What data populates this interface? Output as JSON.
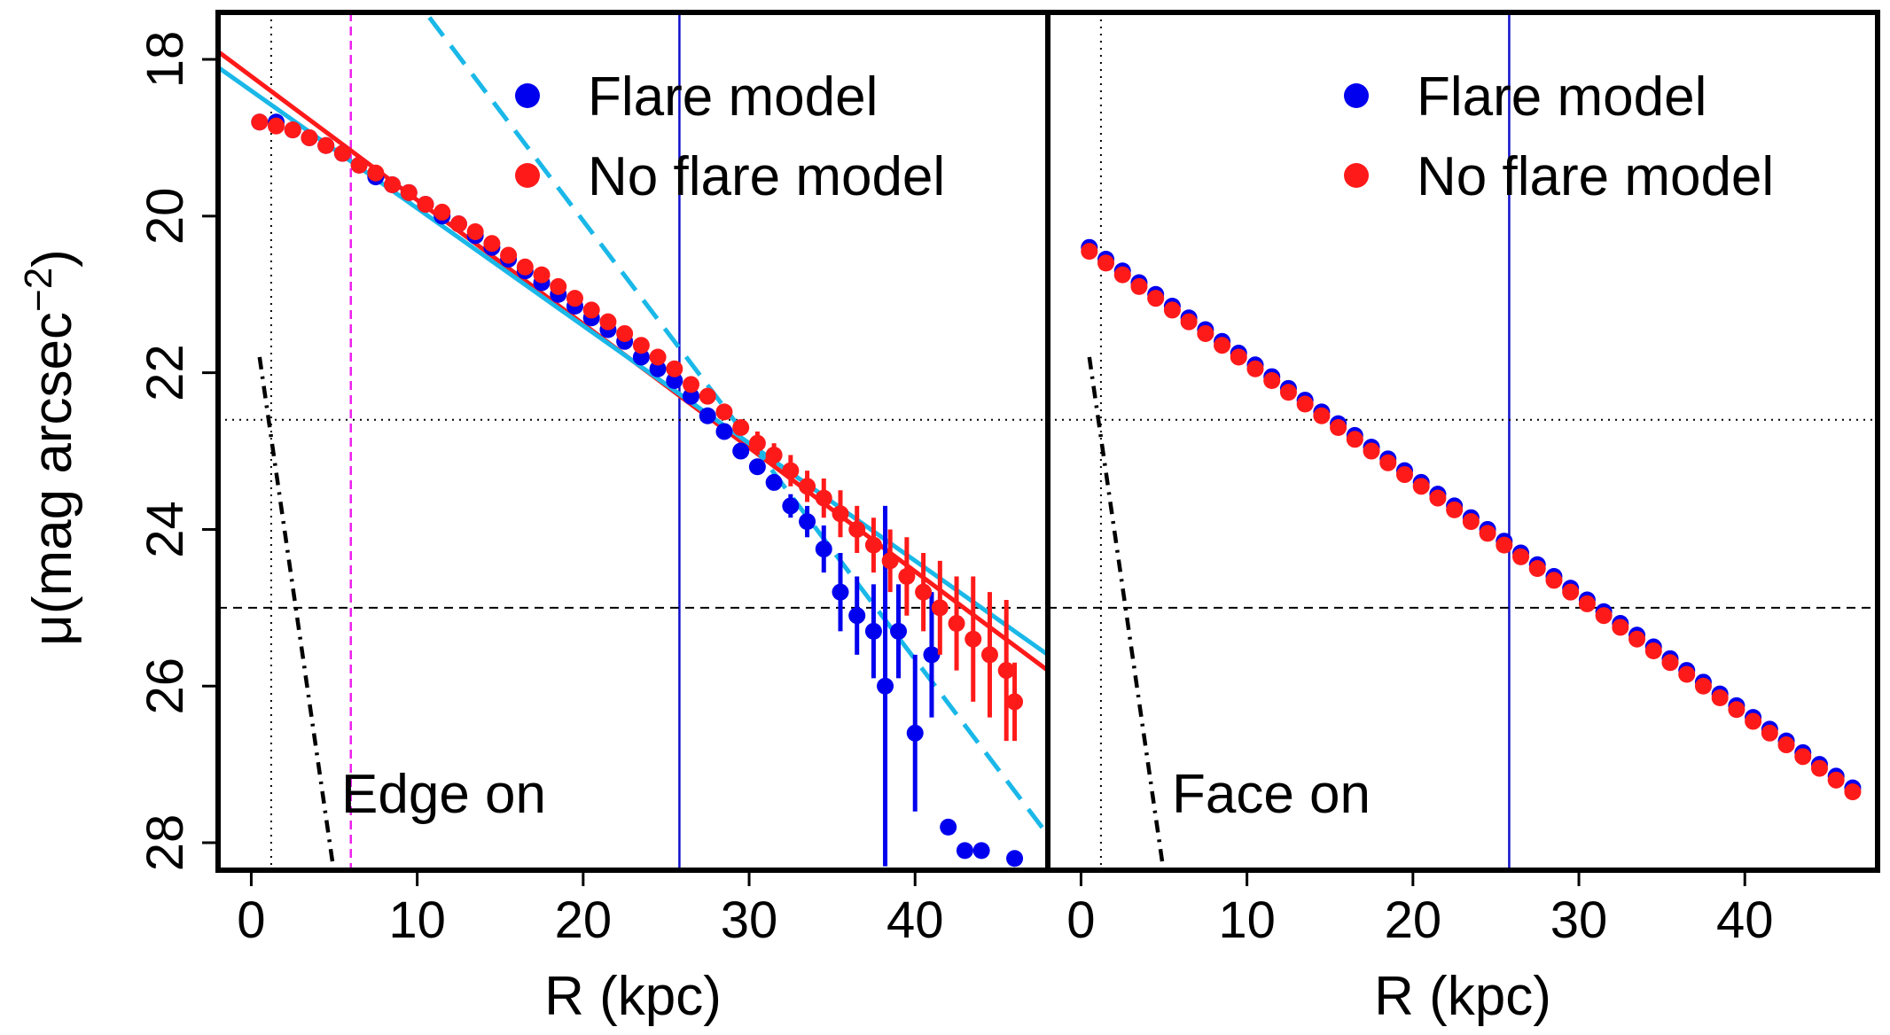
{
  "figure": {
    "ylabel_main": "μ(mag arcsec",
    "ylabel_sup": "−2",
    "ylabel_close": ")"
  },
  "colors": {
    "flare": "#0000ee",
    "noflare": "#ff1a1a",
    "cyan": "#1ab8e8",
    "magenta": "#ee22ee",
    "vline": "#1010cc",
    "black": "#000000"
  },
  "chart_data": [
    {
      "type": "scatter",
      "panel": "Edge on",
      "annotation": "Edge on",
      "xlabel": "R (kpc)",
      "ylabel": "μ(mag arcsec−2)",
      "xlim": [
        -2.0,
        48.0
      ],
      "ylim": [
        28.35,
        17.4
      ],
      "xticks": [
        0,
        10,
        20,
        30,
        40
      ],
      "xtick_labels": [
        "0",
        "10",
        "20",
        "30",
        "40"
      ],
      "yticks": [
        18,
        20,
        22,
        24,
        26,
        28
      ],
      "ytick_labels": [
        "18",
        "20",
        "22",
        "24",
        "26",
        "28"
      ],
      "legend": {
        "position": "top-right",
        "entries": [
          "Flare model",
          "No flare model"
        ]
      },
      "reference_lines": {
        "vertical_dotted": 1.2,
        "vertical_magenta_dashed": 6.0,
        "vertical_blue": 25.8,
        "horizontal_dotted": 22.6,
        "horizontal_dashed": 25.0
      },
      "fit_lines": [
        {
          "name": "red fit",
          "x": [
            -2.0,
            48.0
          ],
          "y": [
            17.9,
            25.8
          ]
        },
        {
          "name": "cyan fit",
          "x": [
            -2.0,
            48.0
          ],
          "y": [
            18.1,
            25.6
          ]
        },
        {
          "name": "cyan dashed fit",
          "x": [
            3.0,
            48.0
          ],
          "y": [
            15.3,
            27.9
          ]
        },
        {
          "name": "black dot-dash",
          "x": [
            0.5,
            5.0
          ],
          "y": [
            21.8,
            28.4
          ]
        }
      ],
      "series": [
        {
          "name": "Flare model",
          "x": [
            0.5,
            1.5,
            2.5,
            3.5,
            4.5,
            5.5,
            6.5,
            7.5,
            8.5,
            9.5,
            10.5,
            11.5,
            12.5,
            13.5,
            14.5,
            15.5,
            16.5,
            17.5,
            18.5,
            19.5,
            20.5,
            21.5,
            22.5,
            23.5,
            24.5,
            25.5,
            26.5,
            27.5,
            28.5,
            29.5,
            30.5,
            31.5,
            32.5,
            33.5,
            34.5,
            35.5,
            36.5,
            37.5,
            38.2,
            39.0,
            40.0,
            41.0,
            42.0,
            43.0,
            44.0,
            46.0
          ],
          "y": [
            18.8,
            18.8,
            18.9,
            19.0,
            19.1,
            19.2,
            19.35,
            19.5,
            19.6,
            19.7,
            19.85,
            20.0,
            20.1,
            20.25,
            20.4,
            20.55,
            20.7,
            20.85,
            21.0,
            21.15,
            21.3,
            21.45,
            21.6,
            21.8,
            21.95,
            22.1,
            22.3,
            22.55,
            22.75,
            23.0,
            23.2,
            23.4,
            23.7,
            23.9,
            24.25,
            24.8,
            25.1,
            25.3,
            26.0,
            25.3,
            26.6,
            25.6,
            27.8,
            28.1,
            28.1,
            28.2
          ],
          "yerr": [
            0.05,
            0.05,
            0.05,
            0.05,
            0.05,
            0.05,
            0.05,
            0.05,
            0.05,
            0.05,
            0.05,
            0.05,
            0.05,
            0.05,
            0.05,
            0.05,
            0.05,
            0.05,
            0.05,
            0.05,
            0.05,
            0.05,
            0.05,
            0.05,
            0.05,
            0.05,
            0.05,
            0.05,
            0.05,
            0.05,
            0.1,
            0.1,
            0.15,
            0.2,
            0.3,
            0.5,
            0.5,
            0.6,
            2.3,
            0.6,
            1.0,
            0.8,
            0.0,
            0.0,
            0.0,
            0.0
          ]
        },
        {
          "name": "No flare model",
          "x": [
            0.5,
            1.5,
            2.5,
            3.5,
            4.5,
            5.5,
            6.5,
            7.5,
            8.5,
            9.5,
            10.5,
            11.5,
            12.5,
            13.5,
            14.5,
            15.5,
            16.5,
            17.5,
            18.5,
            19.5,
            20.5,
            21.5,
            22.5,
            23.5,
            24.5,
            25.5,
            26.5,
            27.5,
            28.5,
            29.5,
            30.5,
            31.5,
            32.5,
            33.5,
            34.5,
            35.5,
            36.5,
            37.5,
            38.5,
            39.5,
            40.5,
            41.5,
            42.5,
            43.5,
            44.5,
            45.5,
            46.0
          ],
          "y": [
            18.8,
            18.85,
            18.9,
            19.0,
            19.1,
            19.2,
            19.35,
            19.45,
            19.6,
            19.7,
            19.85,
            19.95,
            20.1,
            20.2,
            20.35,
            20.5,
            20.65,
            20.75,
            20.9,
            21.05,
            21.2,
            21.35,
            21.5,
            21.65,
            21.8,
            21.95,
            22.15,
            22.3,
            22.5,
            22.7,
            22.9,
            23.05,
            23.25,
            23.45,
            23.6,
            23.8,
            24.0,
            24.2,
            24.4,
            24.6,
            24.8,
            25.0,
            25.2,
            25.4,
            25.6,
            25.8,
            26.2
          ],
          "yerr": [
            0.05,
            0.05,
            0.05,
            0.05,
            0.05,
            0.05,
            0.05,
            0.05,
            0.05,
            0.05,
            0.05,
            0.05,
            0.05,
            0.05,
            0.05,
            0.05,
            0.05,
            0.05,
            0.05,
            0.05,
            0.05,
            0.05,
            0.05,
            0.05,
            0.05,
            0.05,
            0.05,
            0.05,
            0.1,
            0.1,
            0.15,
            0.15,
            0.2,
            0.2,
            0.25,
            0.3,
            0.3,
            0.35,
            0.4,
            0.5,
            0.5,
            0.6,
            0.6,
            0.8,
            0.8,
            0.9,
            0.5
          ]
        }
      ]
    },
    {
      "type": "scatter",
      "panel": "Face on",
      "annotation": "Face on",
      "xlabel": "R (kpc)",
      "xlim": [
        -2.0,
        48.0
      ],
      "ylim": [
        28.35,
        17.4
      ],
      "xticks": [
        0,
        10,
        20,
        30,
        40
      ],
      "xtick_labels": [
        "0",
        "10",
        "20",
        "30",
        "40"
      ],
      "legend": {
        "position": "top-right",
        "entries": [
          "Flare model",
          "No flare model"
        ]
      },
      "reference_lines": {
        "vertical_dotted": 1.2,
        "vertical_blue": 25.8,
        "horizontal_dotted": 22.6,
        "horizontal_dashed": 25.0
      },
      "fit_lines": [
        {
          "name": "black dot-dash",
          "x": [
            0.5,
            5.0
          ],
          "y": [
            21.8,
            28.4
          ]
        }
      ],
      "series": [
        {
          "name": "Flare model",
          "x": [
            0.5,
            1.5,
            2.5,
            3.5,
            4.5,
            5.5,
            6.5,
            7.5,
            8.5,
            9.5,
            10.5,
            11.5,
            12.5,
            13.5,
            14.5,
            15.5,
            16.5,
            17.5,
            18.5,
            19.5,
            20.5,
            21.5,
            22.5,
            23.5,
            24.5,
            25.5,
            26.5,
            27.5,
            28.5,
            29.5,
            30.5,
            31.5,
            32.5,
            33.5,
            34.5,
            35.5,
            36.5,
            37.5,
            38.5,
            39.5,
            40.5,
            41.5,
            42.5,
            43.5,
            44.5,
            45.5,
            46.5
          ],
          "y": [
            20.4,
            20.55,
            20.7,
            20.85,
            21.0,
            21.15,
            21.3,
            21.45,
            21.6,
            21.75,
            21.9,
            22.05,
            22.2,
            22.35,
            22.5,
            22.65,
            22.8,
            22.95,
            23.1,
            23.25,
            23.4,
            23.55,
            23.7,
            23.85,
            24.0,
            24.15,
            24.3,
            24.45,
            24.6,
            24.75,
            24.9,
            25.05,
            25.2,
            25.35,
            25.5,
            25.65,
            25.8,
            25.95,
            26.1,
            26.25,
            26.4,
            26.55,
            26.7,
            26.85,
            27.0,
            27.15,
            27.3
          ],
          "yerr": []
        },
        {
          "name": "No flare model",
          "x": [
            0.5,
            1.5,
            2.5,
            3.5,
            4.5,
            5.5,
            6.5,
            7.5,
            8.5,
            9.5,
            10.5,
            11.5,
            12.5,
            13.5,
            14.5,
            15.5,
            16.5,
            17.5,
            18.5,
            19.5,
            20.5,
            21.5,
            22.5,
            23.5,
            24.5,
            25.5,
            26.5,
            27.5,
            28.5,
            29.5,
            30.5,
            31.5,
            32.5,
            33.5,
            34.5,
            35.5,
            36.5,
            37.5,
            38.5,
            39.5,
            40.5,
            41.5,
            42.5,
            43.5,
            44.5,
            45.5,
            46.5
          ],
          "y": [
            20.45,
            20.6,
            20.75,
            20.9,
            21.05,
            21.2,
            21.35,
            21.5,
            21.65,
            21.8,
            21.95,
            22.1,
            22.25,
            22.4,
            22.55,
            22.7,
            22.85,
            23.0,
            23.15,
            23.3,
            23.45,
            23.6,
            23.75,
            23.9,
            24.05,
            24.2,
            24.35,
            24.5,
            24.65,
            24.8,
            24.95,
            25.1,
            25.25,
            25.4,
            25.55,
            25.7,
            25.85,
            26.0,
            26.15,
            26.3,
            26.45,
            26.6,
            26.75,
            26.9,
            27.05,
            27.2,
            27.35
          ],
          "yerr": []
        }
      ]
    }
  ]
}
